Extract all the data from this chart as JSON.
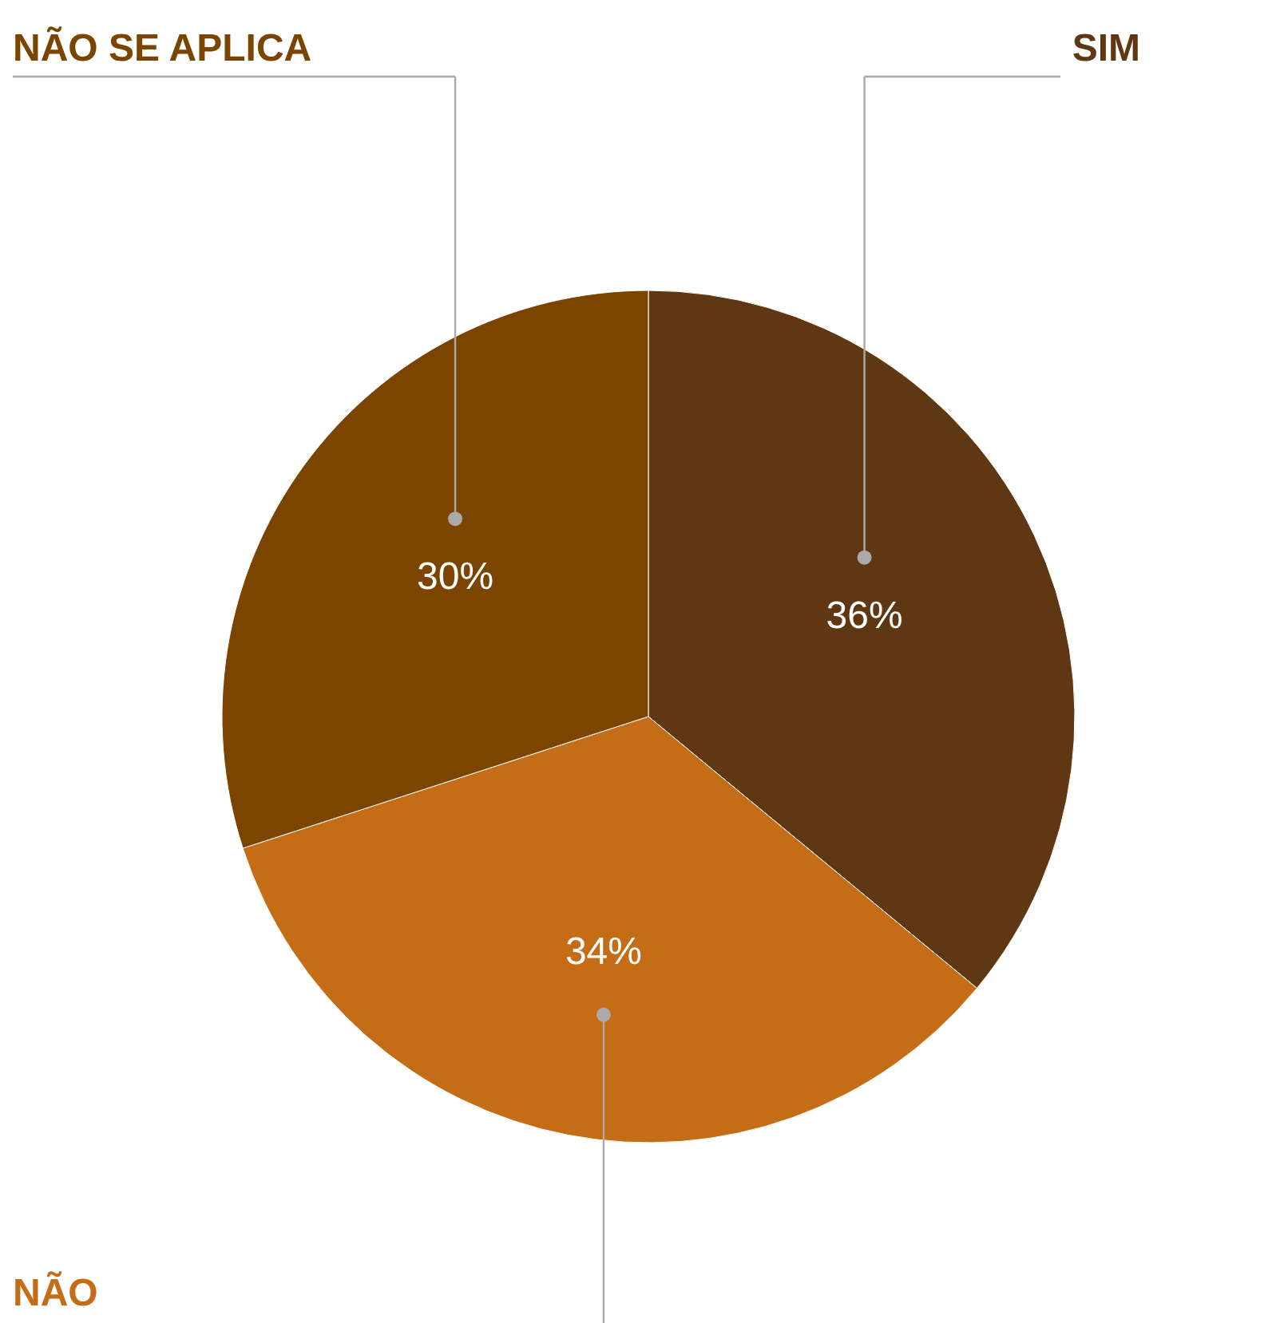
{
  "chart_data": {
    "type": "pie",
    "categories": [
      "SIM",
      "NÃO",
      "NÃO SE APLICA"
    ],
    "values": [
      36,
      34,
      30
    ],
    "colors": [
      "#5f3813",
      "#c56c17",
      "#7b4501"
    ],
    "value_labels": [
      "36%",
      "34%",
      "30%"
    ]
  }
}
